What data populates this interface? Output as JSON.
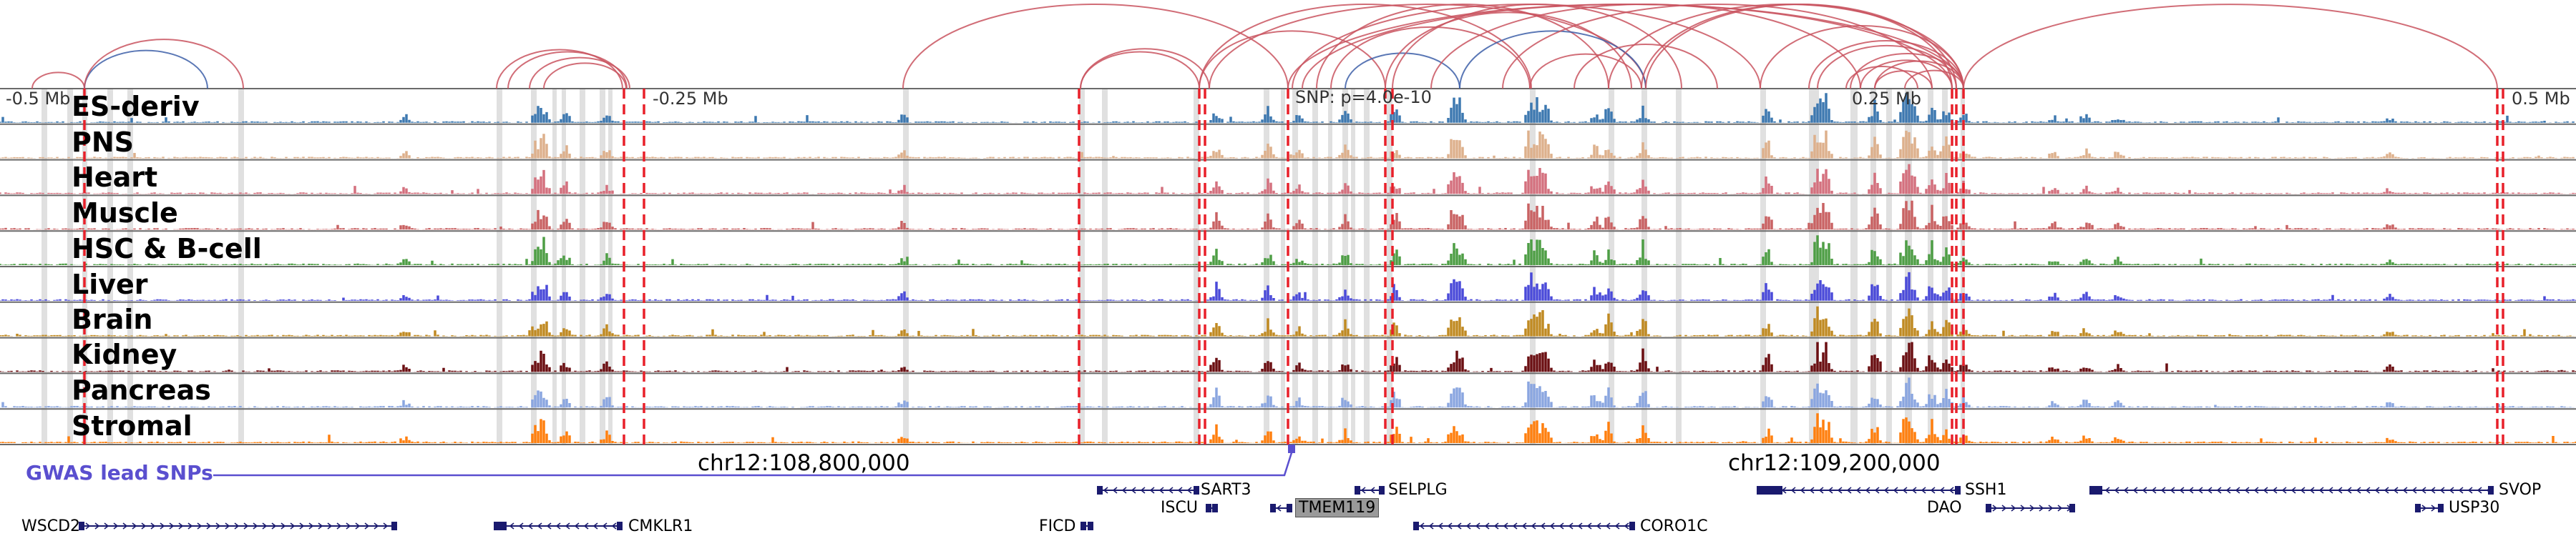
{
  "scale": {
    "left": "-0.5 Mb",
    "mid_left": "-0.25 Mb",
    "mid_right": "0.25 Mb",
    "right": "0.5 Mb"
  },
  "snp_annotation": "SNP: p=4.0e-10",
  "tracks": [
    {
      "name": "ES-deriv",
      "color": "#3d78b0"
    },
    {
      "name": "PNS",
      "color": "#ddb08c"
    },
    {
      "name": "Heart",
      "color": "#d4707e"
    },
    {
      "name": "Muscle",
      "color": "#c96263"
    },
    {
      "name": "HSC & B-cell",
      "color": "#4e9e45"
    },
    {
      "name": "Liver",
      "color": "#4a4ad9"
    },
    {
      "name": "Brain",
      "color": "#c08a22"
    },
    {
      "name": "Kidney",
      "color": "#6b0f12"
    },
    {
      "name": "Pancreas",
      "color": "#8aa6e0"
    },
    {
      "name": "Stromal",
      "color": "#ff7f0e"
    }
  ],
  "coordinates": {
    "left": "chr12:108,800,000",
    "right": "chr12:109,200,000"
  },
  "gwas_label": "GWAS lead SNPs",
  "genes": {
    "row1": [
      "SART3",
      "SELPLG",
      "SSH1",
      "SVOP"
    ],
    "row2": [
      "ISCU",
      "TMEM119",
      "DAO",
      "USP30"
    ],
    "row3": [
      "WSCD2",
      "CMKLR1",
      "FICD",
      "CORO1C"
    ]
  },
  "colors": {
    "arc_main": "#c9545f",
    "arc_blue": "#3d5fa8",
    "snp_line": "#e8202a",
    "gwas": "#5a4fcf",
    "gene": "#1a1a6e",
    "highlight": "#e0e0e0"
  }
}
